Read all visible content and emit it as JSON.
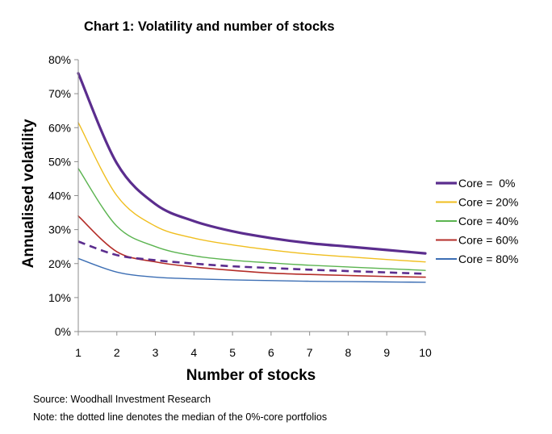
{
  "chart_data": {
    "type": "line",
    "title": "Chart 1: Volatility and number of stocks",
    "xlabel": "Number of stocks",
    "ylabel": "Annualised volatility",
    "x": [
      1,
      2,
      3,
      4,
      5,
      6,
      7,
      8,
      9,
      10
    ],
    "xlim": [
      1,
      10
    ],
    "ylim": [
      0,
      80
    ],
    "y_ticks": [
      "0%",
      "10%",
      "20%",
      "30%",
      "40%",
      "50%",
      "60%",
      "70%",
      "80%"
    ],
    "x_ticks": [
      "1",
      "2",
      "3",
      "4",
      "5",
      "6",
      "7",
      "8",
      "9",
      "10"
    ],
    "grid": false,
    "legend_position": "right",
    "series": [
      {
        "name": "Core =  0%",
        "color": "#5b2d8e",
        "width": 3.2,
        "style": "solid",
        "values": [
          76,
          49.5,
          37.5,
          32.5,
          29.5,
          27.5,
          26,
          25,
          24,
          23
        ]
      },
      {
        "name": "Core = 20%",
        "color": "#f0be1e",
        "width": 1.4,
        "style": "solid",
        "values": [
          61.5,
          40,
          31,
          27.5,
          25.5,
          24,
          22.8,
          22,
          21.2,
          20.5
        ]
      },
      {
        "name": "Core = 40%",
        "color": "#5bb450",
        "width": 1.4,
        "style": "solid",
        "values": [
          48,
          31,
          25,
          22.3,
          21,
          20.2,
          19.5,
          19,
          18.5,
          18
        ]
      },
      {
        "name": "Core = 60%",
        "color": "#b42d28",
        "width": 1.6,
        "style": "solid",
        "values": [
          34,
          23.5,
          20.5,
          19,
          18,
          17.2,
          16.8,
          16.5,
          16.2,
          16
        ]
      },
      {
        "name": "Core = 80%",
        "color": "#3c6eb4",
        "width": 1.4,
        "style": "solid",
        "values": [
          21.5,
          17.5,
          16,
          15.5,
          15.2,
          15,
          14.8,
          14.7,
          14.6,
          14.5
        ]
      }
    ],
    "median_series": {
      "name": "median of the 0%-core portfolios",
      "color": "#5b2d8e",
      "width": 2.6,
      "style": "dashed",
      "values": [
        26.5,
        22.5,
        21,
        20,
        19.2,
        18.7,
        18.2,
        17.8,
        17.4,
        17
      ]
    }
  },
  "notes": {
    "source": "Source: Woodhall Investment Research",
    "dotted": "Note: the dotted line denotes the median of the 0%-core portfolios"
  }
}
